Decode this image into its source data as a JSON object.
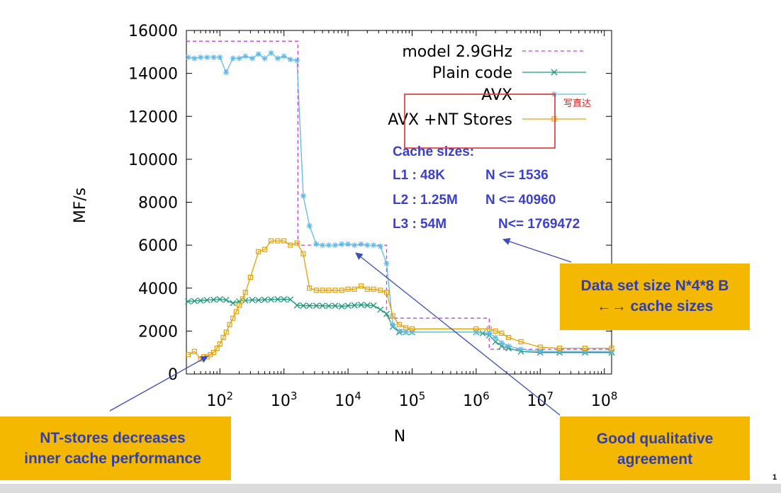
{
  "chart_data": {
    "type": "line",
    "xlabel": "N",
    "ylabel": "MF/s",
    "xscale": "log",
    "xlim": [
      30,
      130000000
    ],
    "ylim": [
      0,
      16000
    ],
    "x_tick_labels": [
      "10^2",
      "10^3",
      "10^4",
      "10^5",
      "10^6",
      "10^7",
      "10^8"
    ],
    "y_tick_labels": [
      "0",
      "2000",
      "4000",
      "6000",
      "8000",
      "10000",
      "12000",
      "14000",
      "16000"
    ],
    "grid": false,
    "legend_position": "top-right",
    "series": [
      {
        "name": "model 2.9GHz",
        "color": "#c040e0",
        "style": "dashed",
        "points": [
          [
            30,
            15500
          ],
          [
            1650,
            15500
          ],
          [
            1650,
            6000
          ],
          [
            40000,
            6000
          ],
          [
            40000,
            2600
          ],
          [
            1600000,
            2600
          ],
          [
            1600000,
            1150
          ],
          [
            130000000,
            1150
          ]
        ]
      },
      {
        "name": "Plain code",
        "color": "#1a9a78",
        "marker": "x",
        "points": [
          [
            32,
            3380
          ],
          [
            40,
            3400
          ],
          [
            50,
            3420
          ],
          [
            63,
            3440
          ],
          [
            80,
            3460
          ],
          [
            100,
            3480
          ],
          [
            125,
            3450
          ],
          [
            160,
            3300
          ],
          [
            200,
            3380
          ],
          [
            250,
            3420
          ],
          [
            320,
            3450
          ],
          [
            400,
            3440
          ],
          [
            500,
            3460
          ],
          [
            630,
            3470
          ],
          [
            800,
            3480
          ],
          [
            1000,
            3480
          ],
          [
            1260,
            3470
          ],
          [
            1600,
            3200
          ],
          [
            2000,
            3180
          ],
          [
            2500,
            3180
          ],
          [
            3200,
            3180
          ],
          [
            4000,
            3180
          ],
          [
            5000,
            3170
          ],
          [
            6300,
            3180
          ],
          [
            8000,
            3150
          ],
          [
            10000,
            3180
          ],
          [
            12600,
            3200
          ],
          [
            16000,
            3220
          ],
          [
            20000,
            3200
          ],
          [
            25000,
            3190
          ],
          [
            32000,
            3000
          ],
          [
            40000,
            2800
          ],
          [
            50000,
            2200
          ],
          [
            63000,
            1950
          ],
          [
            80000,
            1950
          ],
          [
            100000,
            1950
          ],
          [
            1000000,
            1950
          ],
          [
            1260000,
            1900
          ],
          [
            1600000,
            1800
          ],
          [
            2000000,
            1500
          ],
          [
            2500000,
            1300
          ],
          [
            3200000,
            1200
          ],
          [
            5000000,
            1050
          ],
          [
            10000000,
            1000
          ],
          [
            20000000,
            1000
          ],
          [
            50000000,
            1000
          ],
          [
            130000000,
            1000
          ]
        ]
      },
      {
        "name": "AVX",
        "color": "#60b8e8",
        "marker": "*",
        "points": [
          [
            32,
            14750
          ],
          [
            40,
            14700
          ],
          [
            50,
            14750
          ],
          [
            63,
            14750
          ],
          [
            80,
            14750
          ],
          [
            100,
            14750
          ],
          [
            125,
            14050
          ],
          [
            160,
            14700
          ],
          [
            200,
            14700
          ],
          [
            250,
            14800
          ],
          [
            320,
            14700
          ],
          [
            400,
            14900
          ],
          [
            500,
            14700
          ],
          [
            630,
            14950
          ],
          [
            800,
            14700
          ],
          [
            1000,
            14800
          ],
          [
            1260,
            14650
          ],
          [
            1600,
            14600
          ],
          [
            2000,
            8300
          ],
          [
            2500,
            6900
          ],
          [
            3200,
            6050
          ],
          [
            4000,
            6000
          ],
          [
            5000,
            6000
          ],
          [
            6300,
            6000
          ],
          [
            8000,
            6050
          ],
          [
            10000,
            6050
          ],
          [
            12600,
            6000
          ],
          [
            16000,
            6050
          ],
          [
            20000,
            6000
          ],
          [
            25000,
            6000
          ],
          [
            32000,
            5950
          ],
          [
            40000,
            5150
          ],
          [
            50000,
            2300
          ],
          [
            63000,
            2000
          ],
          [
            80000,
            1950
          ],
          [
            100000,
            1950
          ],
          [
            1000000,
            1950
          ],
          [
            1600000,
            1900
          ],
          [
            2000000,
            1700
          ],
          [
            2500000,
            1450
          ],
          [
            3200000,
            1300
          ],
          [
            5000000,
            1150
          ],
          [
            10000000,
            1050
          ],
          [
            20000000,
            1050
          ],
          [
            50000000,
            1050
          ],
          [
            130000000,
            1050
          ]
        ]
      },
      {
        "name": "AVX +NT Stores",
        "color": "#e8a000",
        "marker": "square",
        "points": [
          [
            32,
            900
          ],
          [
            40,
            1050
          ],
          [
            50,
            700
          ],
          [
            56,
            800
          ],
          [
            63,
            800
          ],
          [
            71,
            900
          ],
          [
            80,
            1000
          ],
          [
            90,
            1200
          ],
          [
            100,
            1400
          ],
          [
            113,
            1700
          ],
          [
            126,
            1950
          ],
          [
            142,
            2300
          ],
          [
            160,
            2600
          ],
          [
            180,
            2900
          ],
          [
            200,
            3200
          ],
          [
            226,
            3500
          ],
          [
            250,
            3800
          ],
          [
            300,
            4500
          ],
          [
            400,
            5700
          ],
          [
            500,
            5800
          ],
          [
            630,
            6200
          ],
          [
            800,
            6200
          ],
          [
            1000,
            6200
          ],
          [
            1260,
            6000
          ],
          [
            1600,
            6100
          ],
          [
            2000,
            5600
          ],
          [
            2500,
            4000
          ],
          [
            3200,
            3900
          ],
          [
            4000,
            3900
          ],
          [
            5000,
            3900
          ],
          [
            6300,
            3900
          ],
          [
            8000,
            3900
          ],
          [
            10000,
            3950
          ],
          [
            12600,
            3950
          ],
          [
            16000,
            4100
          ],
          [
            20000,
            3950
          ],
          [
            25000,
            3950
          ],
          [
            32000,
            3900
          ],
          [
            40000,
            3800
          ],
          [
            50000,
            2700
          ],
          [
            63000,
            2300
          ],
          [
            80000,
            2150
          ],
          [
            100000,
            2100
          ],
          [
            1000000,
            2100
          ],
          [
            1600000,
            2100
          ],
          [
            2000000,
            2000
          ],
          [
            2500000,
            1900
          ],
          [
            3200000,
            1700
          ],
          [
            5000000,
            1500
          ],
          [
            10000000,
            1250
          ],
          [
            20000000,
            1200
          ],
          [
            50000000,
            1200
          ],
          [
            130000000,
            1200
          ]
        ]
      }
    ],
    "annotations": {
      "cache_title": "Cache sizes:",
      "cache_rows": [
        {
          "level": "L1 : 48K",
          "range": "N <= 1536"
        },
        {
          "level": "L2 : 1.25M",
          "range": "N <= 40960"
        },
        {
          "level": "L3 : 54M",
          "range": "N<= 1769472"
        }
      ],
      "handwritten_note": "写直达"
    }
  },
  "callouts": {
    "nt_stores": [
      "NT-stores decreases",
      "inner cache performance"
    ],
    "good_agreement": [
      "Good qualitative",
      "agreement"
    ],
    "data_set": [
      "Data set size N*4*8 B",
      "←→ cache sizes"
    ]
  },
  "page_number": "1",
  "colors": {
    "callout_bg": "#f5b800",
    "callout_text": "#2f3fb0",
    "annotation_text": "#3b3fd0",
    "arrow": "#3b4cc0",
    "highlight_box": "#e03030"
  }
}
